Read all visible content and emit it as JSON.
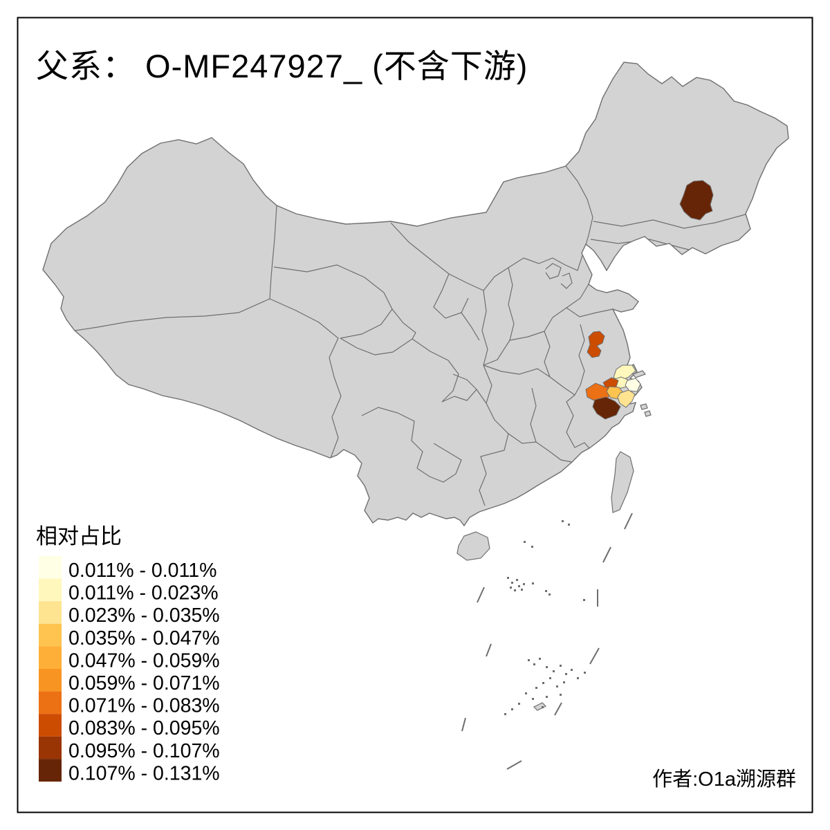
{
  "title": "父系： O-MF247927_ (不含下游)",
  "attribution": "作者:O1a溯源群",
  "legend": {
    "title": "相对占比",
    "classes": [
      {
        "label": "0.011% - 0.011%",
        "color": "#FFFFE5"
      },
      {
        "label": "0.011% - 0.023%",
        "color": "#FFF7BC"
      },
      {
        "label": "0.023% - 0.035%",
        "color": "#FEE391"
      },
      {
        "label": "0.035% - 0.047%",
        "color": "#FEC44F"
      },
      {
        "label": "0.047% - 0.059%",
        "color": "#FEAF38"
      },
      {
        "label": "0.059% - 0.071%",
        "color": "#F89522"
      },
      {
        "label": "0.071% - 0.083%",
        "color": "#EC7014"
      },
      {
        "label": "0.083% - 0.095%",
        "color": "#CC4C02"
      },
      {
        "label": "0.095% - 0.107%",
        "color": "#993404"
      },
      {
        "label": "0.107% - 0.131%",
        "color": "#662506"
      }
    ]
  },
  "map": {
    "land_color": "#D3D3D3",
    "border_color": "#6E6E6E",
    "frame_color": "#000000",
    "regions": [
      {
        "name": "northeast-prefecture",
        "range": "0.107% - 0.131%",
        "color": "#662506"
      },
      {
        "name": "north-jiangsu-prefecture",
        "range": "0.083% - 0.095%",
        "color": "#CC4C02"
      },
      {
        "name": "nantong-prefecture",
        "range": "0.011% - 0.023%",
        "color": "#FFF7BC"
      },
      {
        "name": "suzhou-prefecture",
        "range": "0.011% - 0.023%",
        "color": "#FFF7BC"
      },
      {
        "name": "shanghai",
        "range": "0.011% - 0.011%",
        "color": "#FFFFE5"
      },
      {
        "name": "wuxi-changzhou-prefecture",
        "range": "0.083% - 0.095%",
        "color": "#CC4C02"
      },
      {
        "name": "huzhou-prefecture",
        "range": "0.071% - 0.083%",
        "color": "#EC7014"
      },
      {
        "name": "jiaxing-prefecture",
        "range": "0.035% - 0.047%",
        "color": "#FEC44F"
      },
      {
        "name": "shaoxing-prefecture",
        "range": "0.023% - 0.035%",
        "color": "#FEE391"
      },
      {
        "name": "hangzhou-prefecture",
        "range": "0.107% - 0.131%",
        "color": "#662506"
      }
    ]
  }
}
